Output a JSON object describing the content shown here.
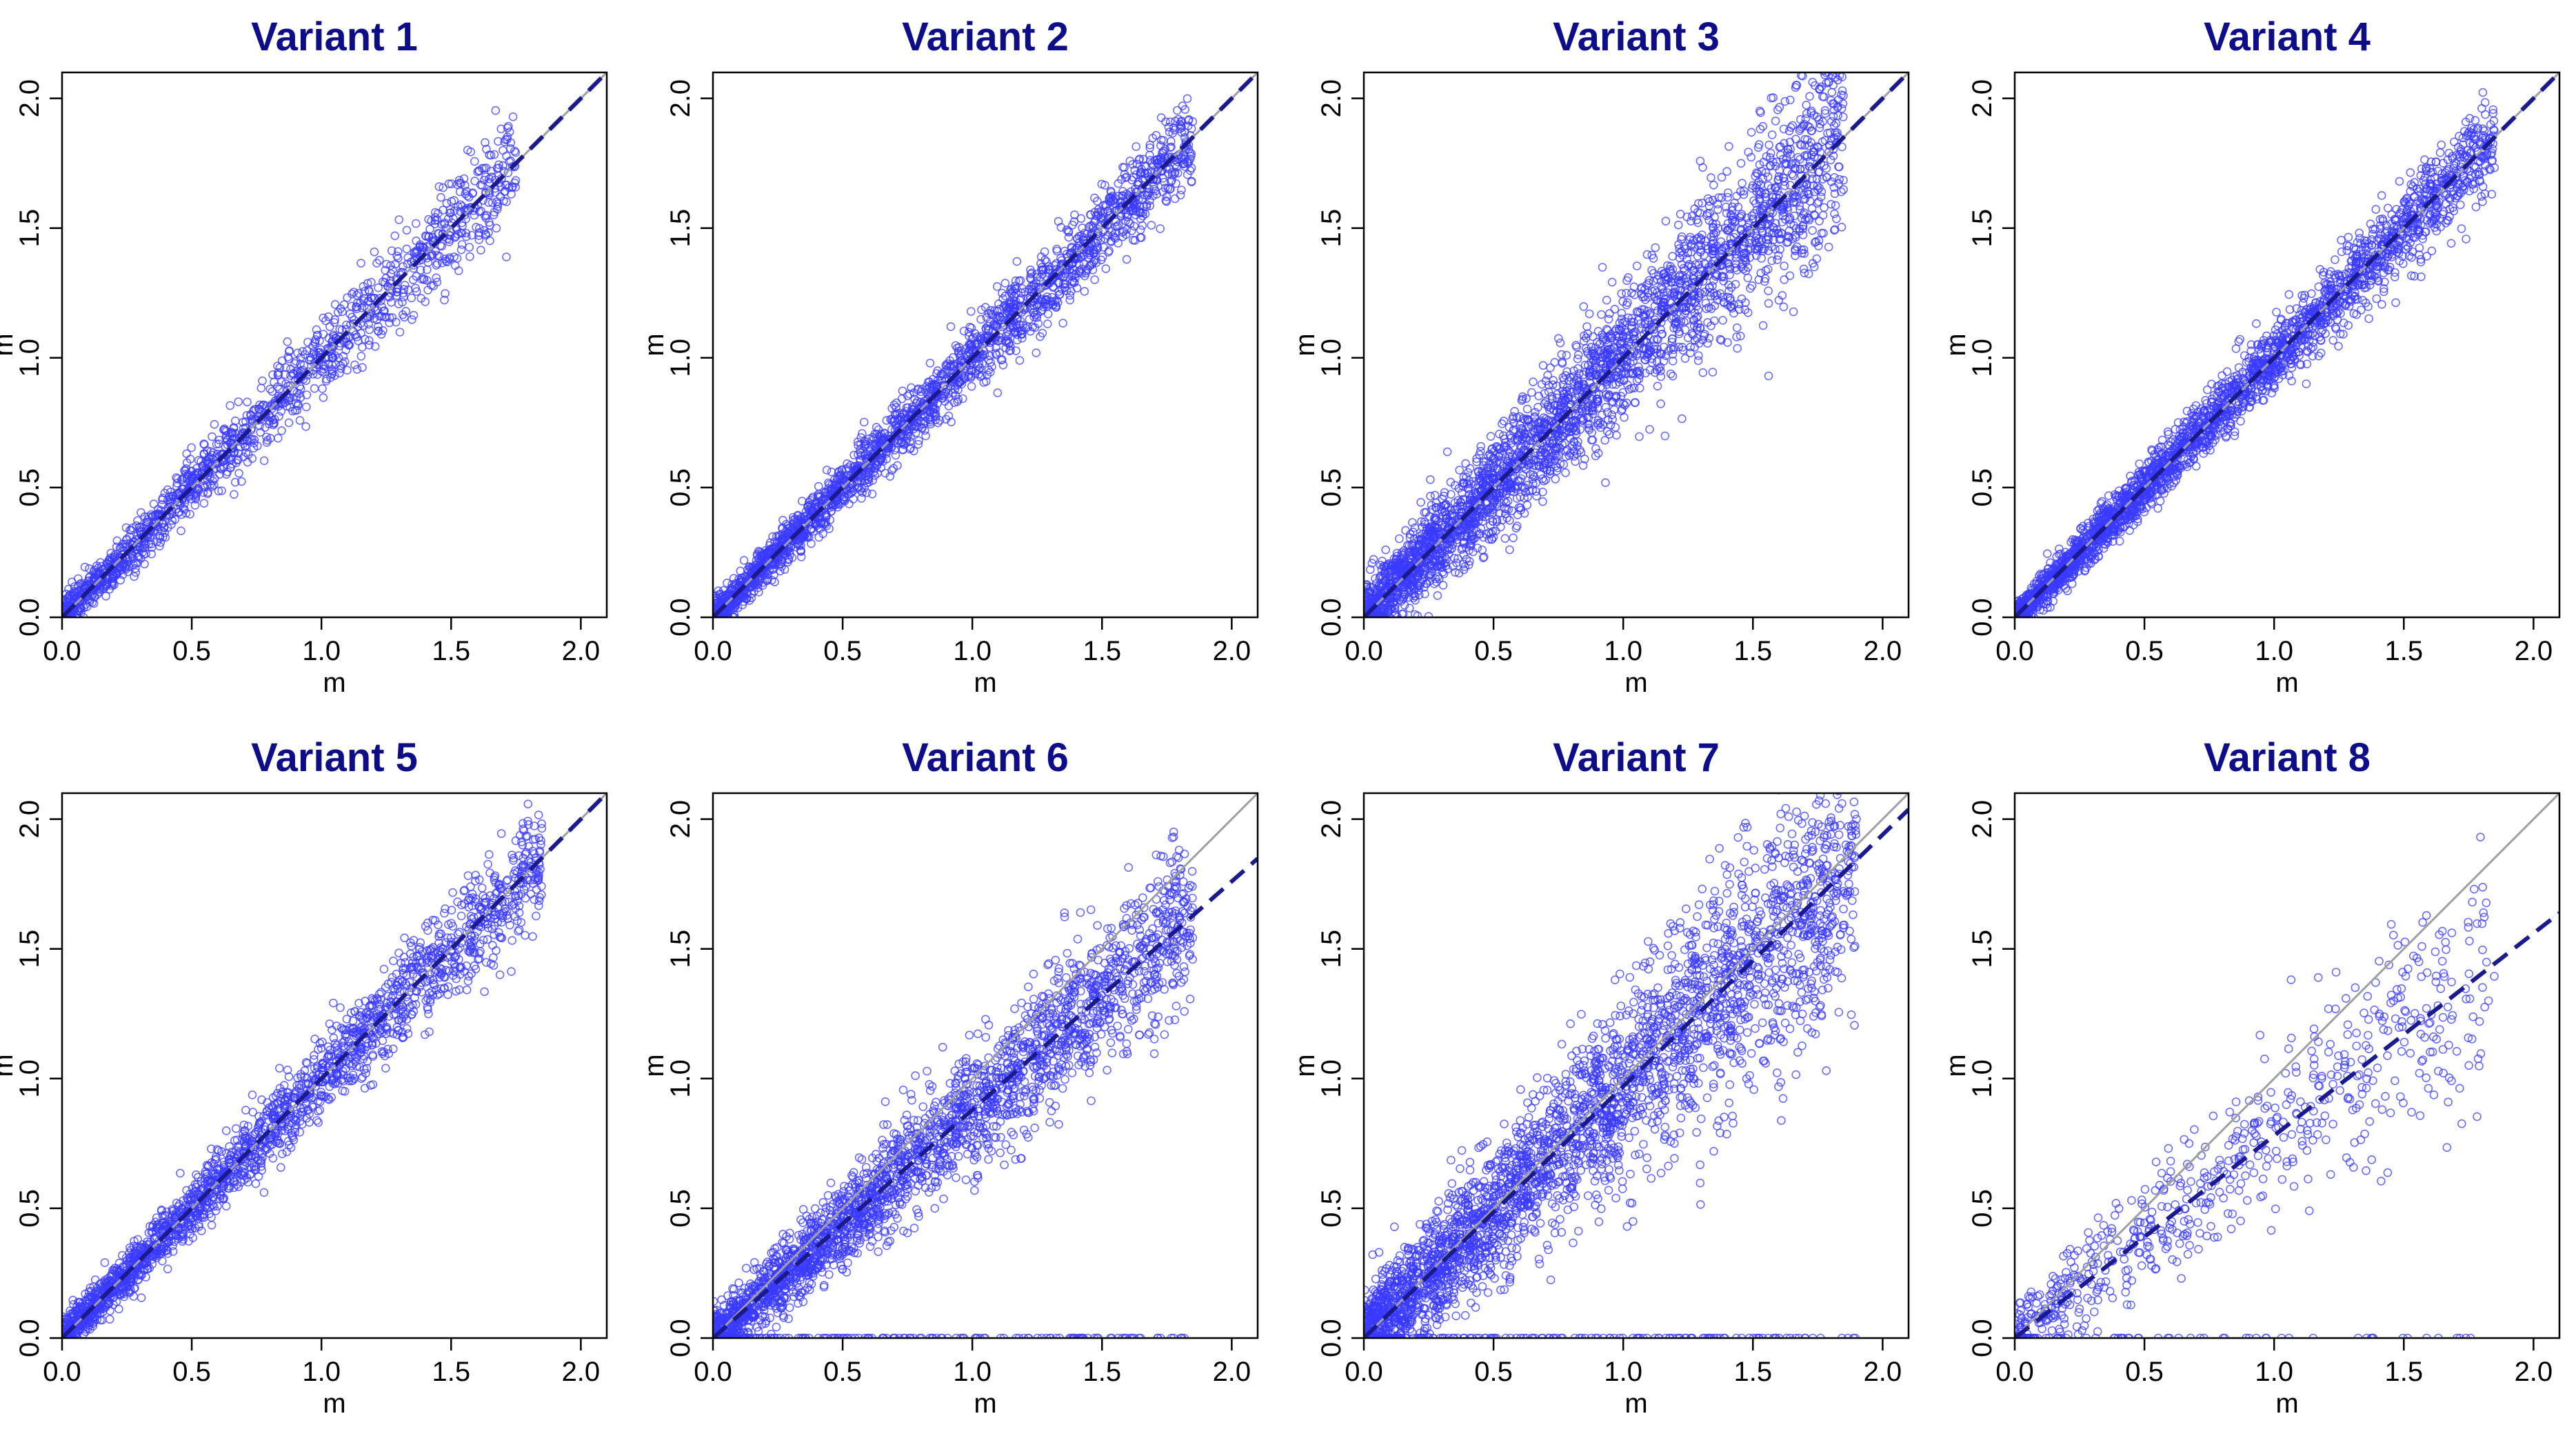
{
  "chart_data": [
    {
      "type": "scatter",
      "title": "Variant 1",
      "xlabel": "m",
      "ylabel": "m",
      "xlim": [
        0,
        2.1
      ],
      "ylim": [
        0,
        2.1
      ],
      "xticks": [
        "0.0",
        "0.5",
        "1.0",
        "1.5",
        "2.0"
      ],
      "yticks": [
        "0.0",
        "0.5",
        "1.0",
        "1.5",
        "2.0"
      ],
      "reference_line": {
        "style": "solid",
        "color": "#a0a0a0",
        "slope": 1
      },
      "fit_line": {
        "style": "dashed",
        "color": "#1a1a8c",
        "slope": 1.0
      },
      "point_color": "#3a3aff",
      "n_points": 1400,
      "x_range": [
        0,
        1.75
      ],
      "spread": 0.07,
      "grid": false,
      "legend": "none"
    },
    {
      "type": "scatter",
      "title": "Variant 2",
      "xlabel": "m",
      "ylabel": "m",
      "xlim": [
        0,
        2.1
      ],
      "ylim": [
        0,
        2.1
      ],
      "xticks": [
        "0.0",
        "0.5",
        "1.0",
        "1.5",
        "2.0"
      ],
      "yticks": [
        "0.0",
        "0.5",
        "1.0",
        "1.5",
        "2.0"
      ],
      "reference_line": {
        "style": "solid",
        "color": "#a0a0a0",
        "slope": 1
      },
      "fit_line": {
        "style": "dashed",
        "color": "#1a1a8c",
        "slope": 1.0
      },
      "point_color": "#3a3aff",
      "n_points": 2200,
      "x_range": [
        0,
        1.85
      ],
      "spread": 0.06,
      "grid": false,
      "legend": "none"
    },
    {
      "type": "scatter",
      "title": "Variant 3",
      "xlabel": "m",
      "ylabel": "m",
      "xlim": [
        0,
        2.1
      ],
      "ylim": [
        0,
        2.1
      ],
      "xticks": [
        "0.0",
        "0.5",
        "1.0",
        "1.5",
        "2.0"
      ],
      "yticks": [
        "0.0",
        "0.5",
        "1.0",
        "1.5",
        "2.0"
      ],
      "reference_line": {
        "style": "solid",
        "color": "#a0a0a0",
        "slope": 1
      },
      "fit_line": {
        "style": "dashed",
        "color": "#1a1a8c",
        "slope": 1.0
      },
      "point_color": "#3a3aff",
      "n_points": 3000,
      "x_range": [
        0,
        1.85
      ],
      "spread": 0.12,
      "grid": false,
      "legend": "none"
    },
    {
      "type": "scatter",
      "title": "Variant 4",
      "xlabel": "m",
      "ylabel": "m",
      "xlim": [
        0,
        2.1
      ],
      "ylim": [
        0,
        2.1
      ],
      "xticks": [
        "0.0",
        "0.5",
        "1.0",
        "1.5",
        "2.0"
      ],
      "yticks": [
        "0.0",
        "0.5",
        "1.0",
        "1.5",
        "2.0"
      ],
      "reference_line": {
        "style": "solid",
        "color": "#a0a0a0",
        "slope": 1
      },
      "fit_line": {
        "style": "dashed",
        "color": "#1a1a8c",
        "slope": 1.0
      },
      "point_color": "#3a3aff",
      "n_points": 2600,
      "x_range": [
        0,
        1.85
      ],
      "spread": 0.06,
      "grid": false,
      "legend": "none"
    },
    {
      "type": "scatter",
      "title": "Variant 5",
      "xlabel": "m",
      "ylabel": "m",
      "xlim": [
        0,
        2.1
      ],
      "ylim": [
        0,
        2.1
      ],
      "xticks": [
        "0.0",
        "0.5",
        "1.0",
        "1.5",
        "2.0"
      ],
      "yticks": [
        "0.0",
        "0.5",
        "1.0",
        "1.5",
        "2.0"
      ],
      "reference_line": {
        "style": "solid",
        "color": "#a0a0a0",
        "slope": 1
      },
      "fit_line": {
        "style": "dashed",
        "color": "#1a1a8c",
        "slope": 1.0
      },
      "point_color": "#3a3aff",
      "n_points": 2000,
      "x_range": [
        0,
        1.85
      ],
      "spread": 0.07,
      "grid": false,
      "legend": "none"
    },
    {
      "type": "scatter",
      "title": "Variant 6",
      "xlabel": "m",
      "ylabel": "m",
      "xlim": [
        0,
        2.1
      ],
      "ylim": [
        0,
        2.1
      ],
      "xticks": [
        "0.0",
        "0.5",
        "1.0",
        "1.5",
        "2.0"
      ],
      "yticks": [
        "0.0",
        "0.5",
        "1.0",
        "1.5",
        "2.0"
      ],
      "reference_line": {
        "style": "solid",
        "color": "#a0a0a0",
        "slope": 1
      },
      "fit_line": {
        "style": "dashed",
        "color": "#1a1a8c",
        "slope": 0.88
      },
      "point_color": "#3a3aff",
      "n_points": 2600,
      "x_range": [
        0,
        1.85
      ],
      "spread": 0.1,
      "grid": false,
      "legend": "none"
    },
    {
      "type": "scatter",
      "title": "Variant 7",
      "xlabel": "m",
      "ylabel": "m",
      "xlim": [
        0,
        2.1
      ],
      "ylim": [
        0,
        2.1
      ],
      "xticks": [
        "0.0",
        "0.5",
        "1.0",
        "1.5",
        "2.0"
      ],
      "yticks": [
        "0.0",
        "0.5",
        "1.0",
        "1.5",
        "2.0"
      ],
      "reference_line": {
        "style": "solid",
        "color": "#a0a0a0",
        "slope": 1
      },
      "fit_line": {
        "style": "dashed",
        "color": "#1a1a8c",
        "slope": 0.97
      },
      "point_color": "#3a3aff",
      "n_points": 3200,
      "x_range": [
        0,
        1.9
      ],
      "spread": 0.16,
      "grid": false,
      "legend": "none"
    },
    {
      "type": "scatter",
      "title": "Variant 8",
      "xlabel": "m",
      "ylabel": "m",
      "xlim": [
        0,
        2.1
      ],
      "ylim": [
        0,
        2.1
      ],
      "xticks": [
        "0.0",
        "0.5",
        "1.0",
        "1.5",
        "2.0"
      ],
      "yticks": [
        "0.0",
        "0.5",
        "1.0",
        "1.5",
        "2.0"
      ],
      "reference_line": {
        "style": "solid",
        "color": "#a0a0a0",
        "slope": 1
      },
      "fit_line": {
        "style": "dashed",
        "color": "#1a1a8c",
        "slope": 0.78
      },
      "point_color": "#3a3aff",
      "n_points": 700,
      "x_range": [
        0,
        1.85
      ],
      "spread": 0.14,
      "grid": false,
      "legend": "none"
    }
  ]
}
